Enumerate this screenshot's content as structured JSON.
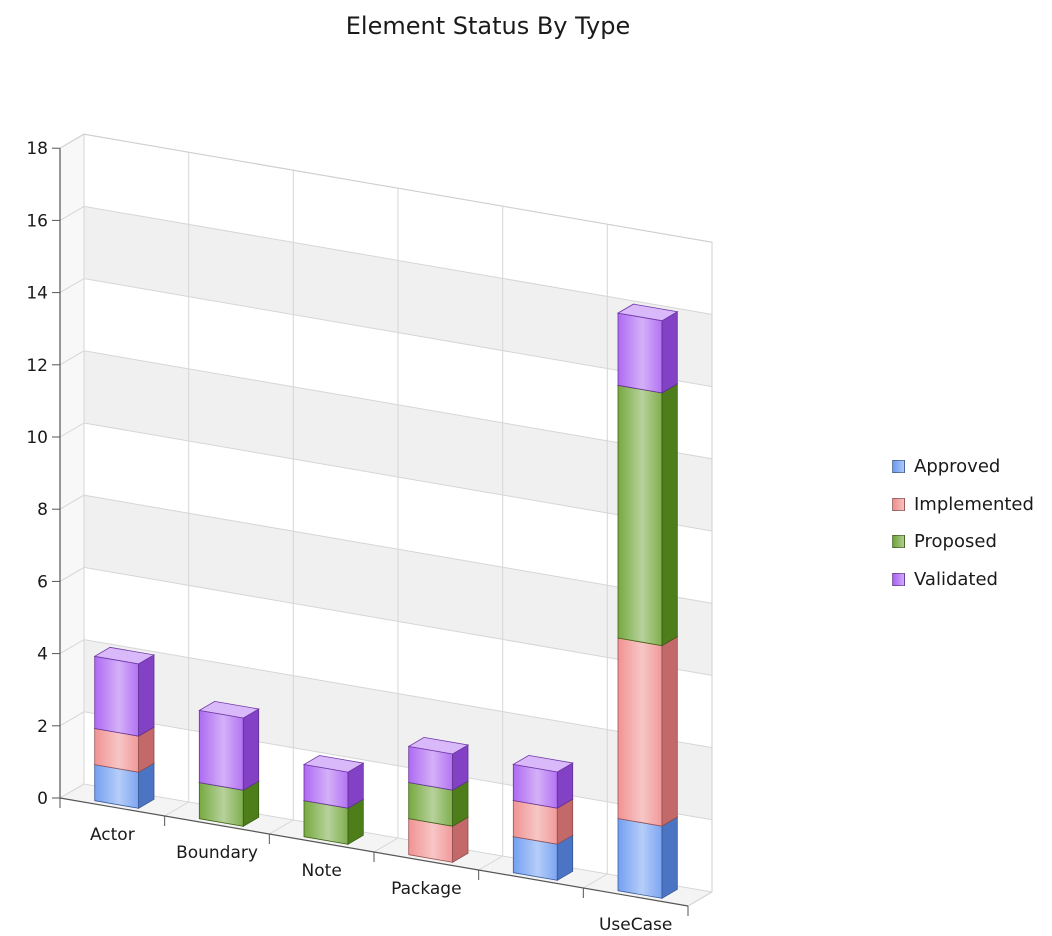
{
  "chart_data": {
    "type": "bar",
    "stacked": true,
    "three_d": true,
    "title": "Element Status By Type",
    "categories": [
      "Actor",
      "Boundary",
      "Note",
      "Package",
      "",
      "UseCase"
    ],
    "series": [
      {
        "name": "Approved",
        "values": [
          1,
          0,
          0,
          0,
          1,
          2
        ],
        "color": "#5b8fef"
      },
      {
        "name": "Implemented",
        "values": [
          1,
          0,
          0,
          1,
          1,
          5
        ],
        "color": "#ee8080"
      },
      {
        "name": "Proposed",
        "values": [
          0,
          1,
          1,
          1,
          0,
          7
        ],
        "color": "#5f9a20"
      },
      {
        "name": "Validated",
        "values": [
          2,
          2,
          1,
          1,
          1,
          2
        ],
        "color": "#a050f0"
      }
    ],
    "ylim": [
      0,
      18
    ],
    "yticks": [
      "0",
      "2",
      "4",
      "6",
      "8",
      "10",
      "12",
      "14",
      "16",
      "18"
    ],
    "grid": true,
    "legend": "right"
  }
}
